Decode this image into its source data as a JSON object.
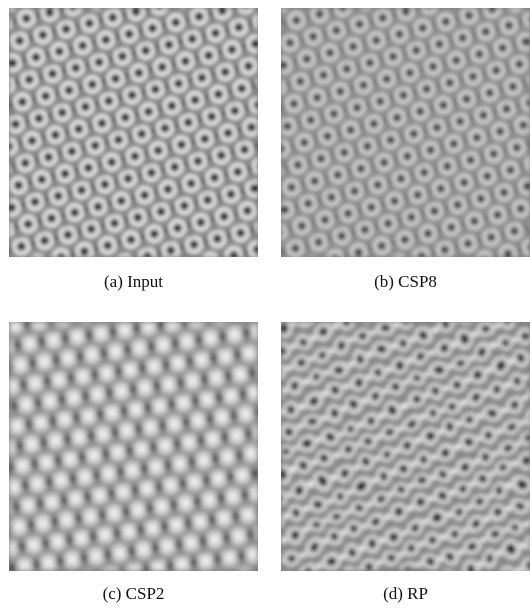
{
  "figure": {
    "panels": [
      {
        "id": "a",
        "caption": "(a)  Input",
        "contrast": "high"
      },
      {
        "id": "b",
        "caption": "(b)  CSP8",
        "contrast": "medium"
      },
      {
        "id": "c",
        "caption": "(c)  CSP2",
        "contrast": "medium"
      },
      {
        "id": "d",
        "caption": "(d)  RP",
        "contrast": "irregular"
      }
    ]
  }
}
